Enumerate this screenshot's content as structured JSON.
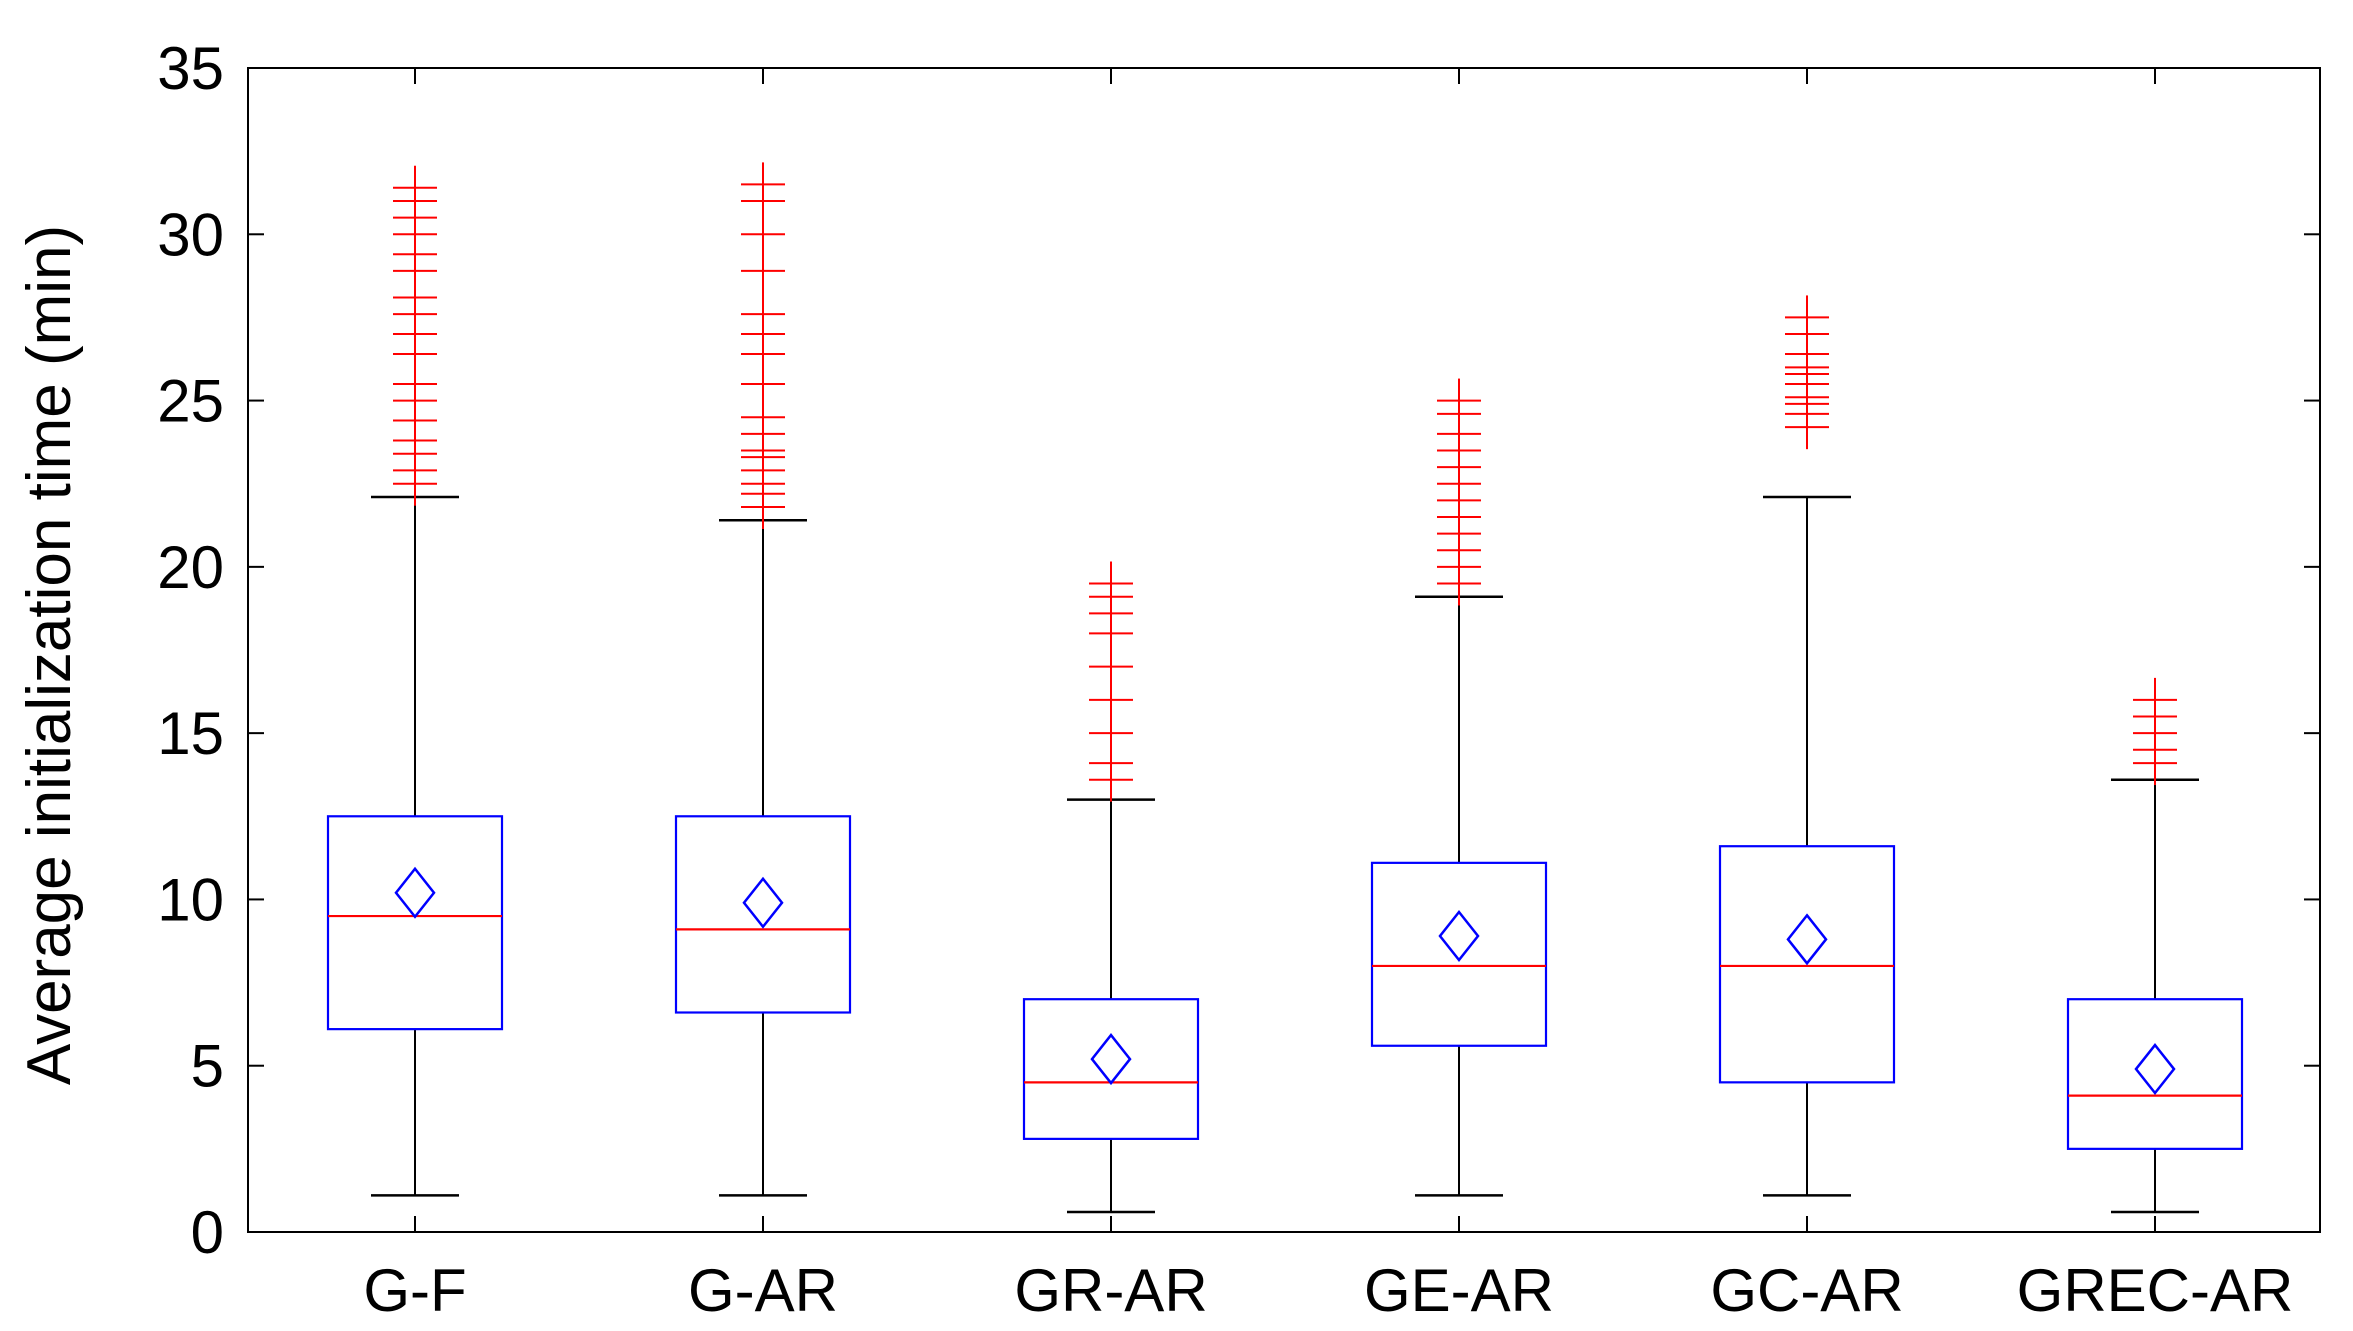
{
  "chart_data": {
    "type": "box",
    "ylabel": "Average initialization time (min)",
    "xlabel": "",
    "ylim": [
      0,
      35
    ],
    "yticks": [
      0,
      5,
      10,
      15,
      20,
      25,
      30,
      35
    ],
    "grid": false,
    "colors": {
      "box": "#0000ff",
      "median": "#ff0000",
      "mean_marker": "#0000ff",
      "whisker": "#000000",
      "outlier": "#ff0000",
      "axis": "#000000"
    },
    "groups": [
      {
        "label": "G-F",
        "q1": 6.1,
        "median": 9.5,
        "q3": 12.5,
        "mean": 10.2,
        "whisker_low": 1.1,
        "whisker_high": 22.1,
        "outliers": [
          22.5,
          22.9,
          23.4,
          23.8,
          24.4,
          25.0,
          25.5,
          26.4,
          27.0,
          27.6,
          28.1,
          28.9,
          29.4,
          30.0,
          30.5,
          31.0,
          31.4
        ]
      },
      {
        "label": "G-AR",
        "q1": 6.6,
        "median": 9.1,
        "q3": 12.5,
        "mean": 9.9,
        "whisker_low": 1.1,
        "whisker_high": 21.4,
        "outliers": [
          21.8,
          22.2,
          22.5,
          22.9,
          23.3,
          23.5,
          24.0,
          24.5,
          25.5,
          26.4,
          27.0,
          27.6,
          28.9,
          30.0,
          31.0,
          31.5
        ]
      },
      {
        "label": "GR-AR",
        "q1": 2.8,
        "median": 4.5,
        "q3": 7.0,
        "mean": 5.2,
        "whisker_low": 0.6,
        "whisker_high": 13.0,
        "outliers": [
          13.6,
          14.1,
          15.0,
          16.0,
          17.0,
          18.0,
          18.6,
          19.1,
          19.5
        ]
      },
      {
        "label": "GE-AR",
        "q1": 5.6,
        "median": 8.0,
        "q3": 11.1,
        "mean": 8.9,
        "whisker_low": 1.1,
        "whisker_high": 19.1,
        "outliers": [
          19.5,
          20.0,
          20.5,
          21.0,
          21.5,
          22.0,
          22.5,
          23.0,
          23.5,
          24.0,
          24.6,
          25.0
        ]
      },
      {
        "label": "GC-AR",
        "q1": 4.5,
        "median": 8.0,
        "q3": 11.6,
        "mean": 8.8,
        "whisker_low": 1.1,
        "whisker_high": 22.1,
        "outliers": [
          24.2,
          24.6,
          24.9,
          25.1,
          25.5,
          25.8,
          26.0,
          26.4,
          27.0,
          27.5
        ]
      },
      {
        "label": "GREC-AR",
        "q1": 2.5,
        "median": 4.1,
        "q3": 7.0,
        "mean": 4.9,
        "whisker_low": 0.6,
        "whisker_high": 13.6,
        "outliers": [
          14.1,
          14.5,
          15.0,
          15.5,
          16.0
        ]
      }
    ]
  }
}
